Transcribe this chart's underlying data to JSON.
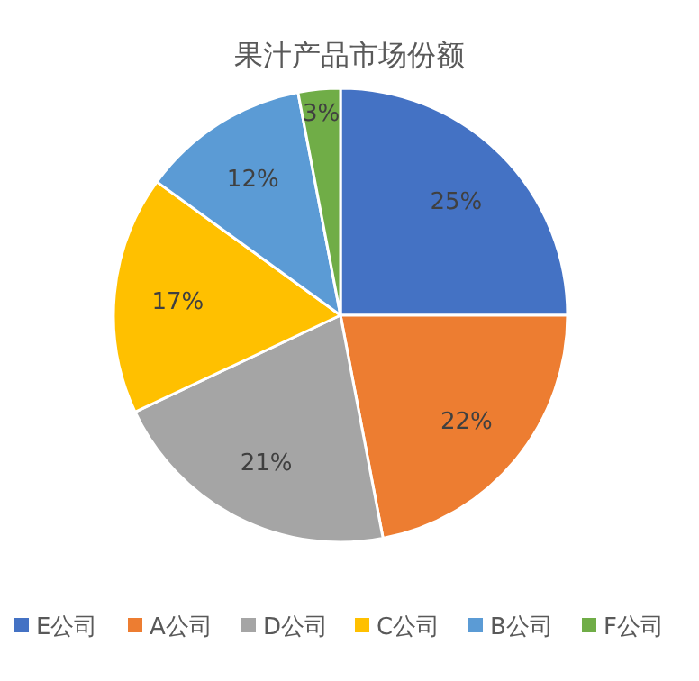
{
  "chart_data": {
    "type": "pie",
    "title": "果汁产品市场份额",
    "categories": [
      "E公司",
      "A公司",
      "D公司",
      "C公司",
      "B公司",
      "F公司"
    ],
    "values": [
      25,
      22,
      21,
      17,
      12,
      3
    ],
    "colors": [
      "#4472c4",
      "#ed7d31",
      "#a5a5a5",
      "#ffc000",
      "#5b9bd5",
      "#70ad47"
    ],
    "value_labels": [
      "25%",
      "22%",
      "21%",
      "17%",
      "12%",
      "3%"
    ],
    "legend": "bottom"
  }
}
